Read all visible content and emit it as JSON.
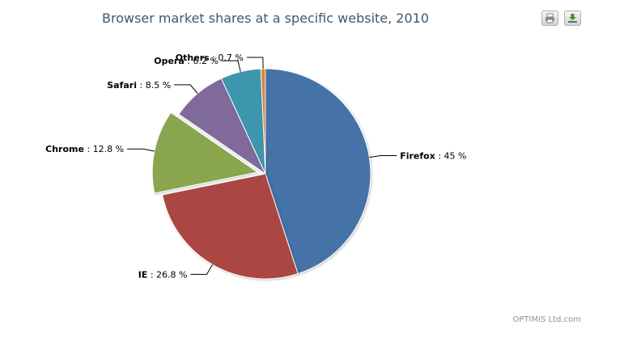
{
  "chart_data": {
    "type": "pie",
    "title": "Browser market shares at a specific website, 2010",
    "slices": [
      {
        "name": "Firefox",
        "value": 45.0,
        "label": "45 %",
        "color": "#4572A7"
      },
      {
        "name": "IE",
        "value": 26.8,
        "label": "26.8 %",
        "color": "#AA4643"
      },
      {
        "name": "Chrome",
        "value": 12.8,
        "label": "12.8 %",
        "color": "#89A54E",
        "sliced": true
      },
      {
        "name": "Safari",
        "value": 8.5,
        "label": "8.5 %",
        "color": "#80699B"
      },
      {
        "name": "Opera",
        "value": 6.2,
        "label": "6.2 %",
        "color": "#3D96AE"
      },
      {
        "name": "Others",
        "value": 0.7,
        "label": "0.7 %",
        "color": "#DB843D"
      }
    ],
    "legend": "none",
    "data_labels": "outside-with-connectors"
  },
  "toolbar": {
    "print_icon": "printer-icon",
    "export_icon": "download-icon"
  },
  "credit": "OPTIMIS Ltd.com"
}
